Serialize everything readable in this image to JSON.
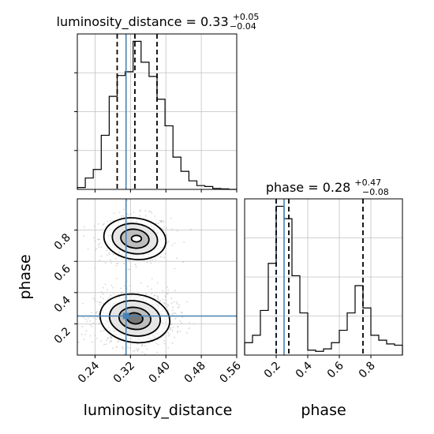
{
  "chart_data": [
    {
      "type": "histogram",
      "panel": "luminosity_distance-marginal",
      "title": {
        "param": "luminosity_distance",
        "value": "0.33",
        "upper": "+0.05",
        "lower": "−0.04"
      },
      "xlim": [
        0.2,
        0.56
      ],
      "bins": [
        0.2,
        0.218,
        0.236,
        0.254,
        0.272,
        0.29,
        0.308,
        0.326,
        0.344,
        0.362,
        0.38,
        0.398,
        0.416,
        0.434,
        0.452,
        0.47,
        0.488,
        0.506,
        0.524,
        0.542,
        0.56
      ],
      "values": [
        0.02,
        0.12,
        0.21,
        0.57,
        0.98,
        1.2,
        1.24,
        1.56,
        1.34,
        1.19,
        0.95,
        0.67,
        0.34,
        0.19,
        0.09,
        0.04,
        0.03,
        0.01,
        0.005,
        0.0
      ],
      "quantiles": [
        0.29,
        0.33,
        0.38
      ],
      "truth": 0.31,
      "x_ticks": [
        0.24,
        0.32,
        0.4,
        0.48,
        0.56
      ],
      "grid": true
    },
    {
      "type": "histogram",
      "panel": "phase-marginal",
      "title": {
        "param": "phase",
        "value": "0.28",
        "upper": "+0.47",
        "lower": "−0.08"
      },
      "xlim": [
        0.0,
        1.0
      ],
      "bins": [
        0.0,
        0.05,
        0.1,
        0.15,
        0.2,
        0.25,
        0.3,
        0.35,
        0.4,
        0.45,
        0.5,
        0.55,
        0.6,
        0.65,
        0.7,
        0.75,
        0.8,
        0.85,
        0.9,
        0.95,
        1.0
      ],
      "values": [
        0.05,
        0.08,
        0.18,
        0.37,
        0.6,
        0.55,
        0.32,
        0.17,
        0.02,
        0.015,
        0.025,
        0.05,
        0.1,
        0.17,
        0.28,
        0.19,
        0.08,
        0.06,
        0.045,
        0.04
      ],
      "quantiles": [
        0.2,
        0.28,
        0.75
      ],
      "truth": 0.25,
      "x_ticks": [
        0.2,
        0.4,
        0.6,
        0.8
      ],
      "x_tick_labels": [
        "0.2",
        "0.4",
        "0.6",
        "0.8"
      ],
      "xlabel": "phase",
      "grid": true
    },
    {
      "type": "scatter",
      "panel": "joint-2d",
      "x_param": "luminosity_distance",
      "y_param": "phase",
      "xlim": [
        0.2,
        0.56
      ],
      "ylim": [
        0.0,
        1.0
      ],
      "x_ticks": [
        0.24,
        0.32,
        0.4,
        0.48,
        0.56
      ],
      "x_tick_labels": [
        "0.24",
        "0.32",
        "0.40",
        "0.48",
        "0.56"
      ],
      "y_ticks": [
        0.2,
        0.4,
        0.6,
        0.8
      ],
      "y_tick_labels": [
        "0.2",
        "0.4",
        "0.6",
        "0.8"
      ],
      "xlabel": "luminosity_distance",
      "ylabel": "phase",
      "truth": {
        "x": 0.31,
        "y": 0.25
      },
      "modes": [
        {
          "x": 0.33,
          "y": 0.745,
          "sx": 0.032,
          "sy": 0.06,
          "weight": 0.36
        },
        {
          "x": 0.33,
          "y": 0.235,
          "sx": 0.036,
          "sy": 0.07,
          "weight": 0.64
        }
      ],
      "grid": true
    }
  ],
  "colors": {
    "truth": "#4682b4",
    "line": "#000000",
    "grid": "#c0c0c0",
    "samples": "#b4b4b4"
  }
}
